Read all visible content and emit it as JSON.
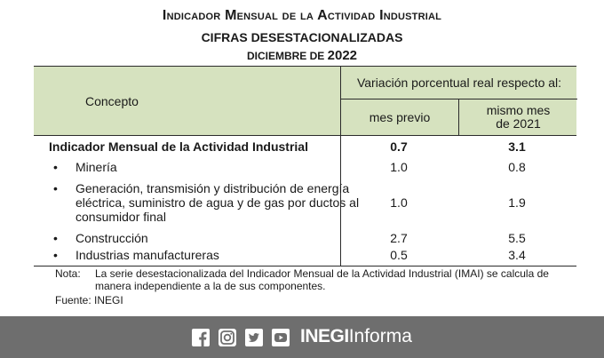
{
  "header": {
    "title": "Indicador Mensual de la Actividad Industrial",
    "subtitle": "CIFRAS DESESTACIONALIZADAS",
    "period_month": "DICIEMBRE DE",
    "period_year": "2022"
  },
  "table": {
    "col_concept": "Concepto",
    "col_group": "Variación porcentual real respecto al:",
    "col_prev": "mes previo",
    "col_year_line1": "mismo mes",
    "col_year_line2": "de 2021",
    "rows": [
      {
        "label": "Indicador Mensual de la Actividad Industrial",
        "prev": "0.7",
        "year": "3.1"
      },
      {
        "label": "Minería",
        "prev": "1.0",
        "year": "0.8"
      },
      {
        "label": "Generación, transmisión y distribución de energía eléctrica, suministro de agua y de gas por ductos al consumidor final",
        "prev": "1.0",
        "year": "1.9"
      },
      {
        "label": "Construcción",
        "prev": "2.7",
        "year": "5.5"
      },
      {
        "label": "Industrias manufactureras",
        "prev": "0.5",
        "year": "3.4"
      }
    ]
  },
  "note": {
    "label": "Nota:",
    "text": "La serie desestacionalizada del Indicador Mensual de la Actividad Industrial (IMAI) se calcula de manera independiente a la de sus componentes."
  },
  "source": "Fuente: INEGI",
  "footer": {
    "brand_bold": "INEGI",
    "brand_light": "Informa",
    "social_icons": [
      "facebook-icon",
      "instagram-icon",
      "twitter-icon",
      "youtube-icon"
    ],
    "background": "#6e6e6e"
  },
  "colors": {
    "header_fill": "#d6e2bf"
  }
}
